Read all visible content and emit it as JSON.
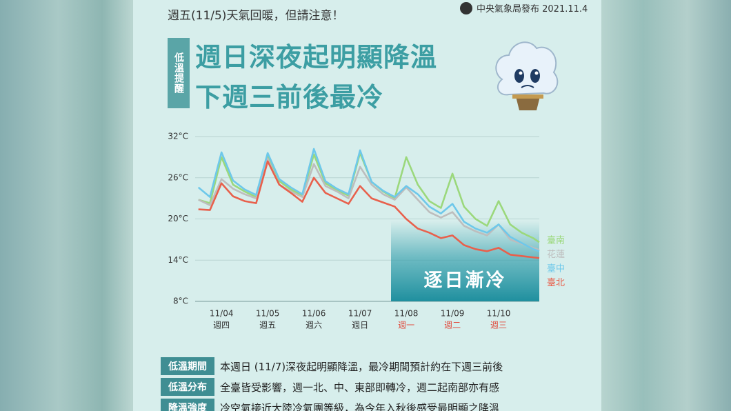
{
  "header": {
    "subtitle": "週五(11/5)天氣回暖，但請注意！",
    "publisher": "中央氣象局發布 2021.11.4",
    "tag": "低溫提醒",
    "title_lines": [
      "週日深夜起明顯降溫",
      "下週三前後最冷"
    ]
  },
  "chart_data": {
    "type": "line",
    "x": [
      3.5,
      3.75,
      4,
      4.25,
      4.5,
      4.75,
      5,
      5.25,
      5.5,
      5.75,
      6,
      6.25,
      6.5,
      6.75,
      7,
      7.25,
      7.5,
      7.75,
      8,
      8.25,
      8.5,
      8.75,
      9,
      9.25,
      9.5,
      9.75,
      10,
      10.25,
      10.5,
      10.75,
      10.88
    ],
    "xlim": [
      3.43,
      10.88
    ],
    "xticks": [
      {
        "value": 4,
        "label": "11/04"
      },
      {
        "value": 5,
        "label": "11/05"
      },
      {
        "value": 6,
        "label": "11/06"
      },
      {
        "value": 7,
        "label": "11/07"
      },
      {
        "value": 8,
        "label": "11/08"
      },
      {
        "value": 9,
        "label": "11/09"
      },
      {
        "value": 10,
        "label": "11/10"
      }
    ],
    "x_sublabels": [
      "週四",
      "週五",
      "週六",
      "週日",
      "週一",
      "週二",
      "週三"
    ],
    "x_sublabel_colors": [
      "#333333",
      "#333333",
      "#333333",
      "#333333",
      "#e04a3c",
      "#e04a3c",
      "#e04a3c"
    ],
    "ylim": [
      8,
      32
    ],
    "yticks": [
      {
        "value": 8,
        "label": "8°C"
      },
      {
        "value": 14,
        "label": "14°C"
      },
      {
        "value": 20,
        "label": "20°C"
      },
      {
        "value": 26,
        "label": "26°C"
      },
      {
        "value": 32,
        "label": "32°C"
      }
    ],
    "grid": true,
    "series": [
      {
        "name": "臺南",
        "color": "#9bd87c",
        "values": [
          22.8,
          22.3,
          29.0,
          25.0,
          24.0,
          23.2,
          29.2,
          25.5,
          24.3,
          23.4,
          29.4,
          25.2,
          24.2,
          23.4,
          29.6,
          25.4,
          24.0,
          23.0,
          29.0,
          25.0,
          22.6,
          21.6,
          26.6,
          21.8,
          20.0,
          19.0,
          22.6,
          19.2,
          18.0,
          17.2,
          16.6
        ]
      },
      {
        "name": "花蓮",
        "color": "#bdbdbd",
        "values": [
          22.8,
          22.0,
          25.8,
          24.4,
          23.6,
          23.0,
          28.8,
          25.0,
          24.0,
          23.2,
          28.0,
          24.8,
          24.0,
          23.0,
          27.6,
          25.0,
          23.6,
          22.8,
          24.6,
          22.8,
          21.0,
          20.2,
          21.0,
          19.0,
          18.2,
          17.6,
          19.2,
          17.0,
          16.4,
          15.8,
          15.5
        ]
      },
      {
        "name": "臺中",
        "color": "#6ec8ea",
        "values": [
          24.6,
          23.2,
          29.7,
          25.6,
          24.3,
          23.5,
          29.6,
          25.8,
          24.6,
          23.6,
          30.2,
          25.5,
          24.4,
          23.6,
          30.0,
          25.4,
          24.1,
          23.2,
          24.8,
          23.6,
          21.8,
          20.8,
          22.2,
          19.6,
          18.6,
          18.0,
          19.2,
          17.4,
          16.5,
          15.6,
          15.3
        ]
      },
      {
        "name": "臺北",
        "color": "#e8604c",
        "values": [
          21.4,
          21.3,
          25.2,
          23.3,
          22.6,
          22.3,
          28.4,
          25.0,
          23.8,
          22.5,
          26.0,
          23.8,
          23.0,
          22.2,
          24.8,
          23.0,
          22.4,
          21.8,
          20.0,
          18.6,
          18.0,
          17.2,
          17.6,
          16.2,
          15.6,
          15.3,
          15.8,
          14.8,
          14.6,
          14.4,
          14.3
        ]
      }
    ],
    "annotation": "逐日漸冷"
  },
  "table": {
    "rows": [
      [
        "低溫期間",
        "本週日 (11/7)深夜起明顯降溫，最冷期間預計約在下週三前後"
      ],
      [
        "低溫分布",
        "全臺皆受影響，週一北、中、東部即轉冷，週二起南部亦有感"
      ],
      [
        "降溫強度",
        "冷空氣接近大陸冷氣團等級，為今年入秋後感受最明顯之降溫"
      ]
    ]
  }
}
